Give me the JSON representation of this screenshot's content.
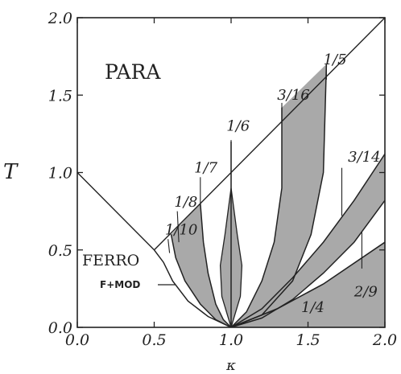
{
  "chart_data": {
    "type": "line",
    "title": "",
    "xlabel": "κ",
    "ylabel": "T",
    "xlim": [
      0.0,
      2.0
    ],
    "ylim": [
      0.0,
      2.0
    ],
    "x_ticks": [
      "0.0",
      "0.5",
      "1.0",
      "1.5",
      "2.0"
    ],
    "y_ticks": [
      "0.0",
      "0.5",
      "1.0",
      "1.5",
      "2.0"
    ],
    "grid": false,
    "phase_labels": {
      "para": "PARA",
      "ferro": "FERRO",
      "fmod": "F+MOD",
      "quarter": "1/4"
    },
    "boundaries": {
      "ferro_para": [
        [
          0.0,
          1.0
        ],
        [
          0.5,
          0.5
        ]
      ],
      "modulated_para": [
        [
          0.5,
          0.5
        ],
        [
          2.0,
          2.0
        ]
      ],
      "quarter_upper": [
        [
          1.0,
          0.0
        ],
        [
          1.3,
          0.12
        ],
        [
          1.6,
          0.28
        ],
        [
          2.0,
          0.55
        ]
      ]
    },
    "series": [
      {
        "name": "1/10",
        "label_pos": [
          0.57,
          0.6
        ],
        "points": [
          [
            0.5,
            0.5
          ],
          [
            0.56,
            0.42
          ],
          [
            0.62,
            0.3
          ],
          [
            0.72,
            0.17
          ],
          [
            0.85,
            0.07
          ],
          [
            1.0,
            0.0
          ]
        ]
      },
      {
        "name": "1/8",
        "label_pos": [
          0.63,
          0.78
        ],
        "points": [
          [
            0.61,
            0.6
          ],
          [
            0.64,
            0.45
          ],
          [
            0.7,
            0.3
          ],
          [
            0.8,
            0.15
          ],
          [
            0.9,
            0.05
          ],
          [
            1.0,
            0.0
          ]
        ]
      },
      {
        "name": "1/7",
        "label_pos": [
          0.76,
          1.0
        ],
        "points": [
          [
            0.8,
            0.8
          ],
          [
            0.82,
            0.55
          ],
          [
            0.85,
            0.35
          ],
          [
            0.9,
            0.15
          ],
          [
            0.95,
            0.05
          ],
          [
            1.0,
            0.0
          ]
        ]
      },
      {
        "name": "1/6",
        "label_pos": [
          0.97,
          1.27
        ],
        "points": [
          [
            1.0,
            1.2
          ],
          [
            1.0,
            0.0
          ]
        ]
      },
      {
        "name": "3/16",
        "label_pos": [
          1.3,
          1.47
        ],
        "points": [
          [
            1.33,
            1.42
          ],
          [
            1.33,
            0.9
          ],
          [
            1.28,
            0.55
          ],
          [
            1.2,
            0.3
          ],
          [
            1.1,
            0.1
          ],
          [
            1.0,
            0.0
          ]
        ]
      },
      {
        "name": "1/5",
        "label_pos": [
          1.6,
          1.7
        ],
        "points": [
          [
            1.62,
            1.7
          ],
          [
            1.6,
            1.0
          ],
          [
            1.52,
            0.6
          ],
          [
            1.4,
            0.3
          ],
          [
            1.2,
            0.08
          ],
          [
            1.0,
            0.0
          ]
        ]
      },
      {
        "name": "3/14",
        "label_pos": [
          1.76,
          1.07
        ],
        "points": [
          [
            2.0,
            1.12
          ],
          [
            1.8,
            0.82
          ],
          [
            1.6,
            0.55
          ],
          [
            1.4,
            0.32
          ],
          [
            1.2,
            0.12
          ],
          [
            1.0,
            0.0
          ]
        ]
      },
      {
        "name": "2/9",
        "label_pos": [
          1.8,
          0.2
        ],
        "points": [
          [
            2.0,
            0.82
          ],
          [
            1.8,
            0.55
          ],
          [
            1.6,
            0.35
          ],
          [
            1.4,
            0.18
          ],
          [
            1.2,
            0.06
          ],
          [
            1.0,
            0.0
          ]
        ]
      }
    ],
    "legend": "none"
  }
}
